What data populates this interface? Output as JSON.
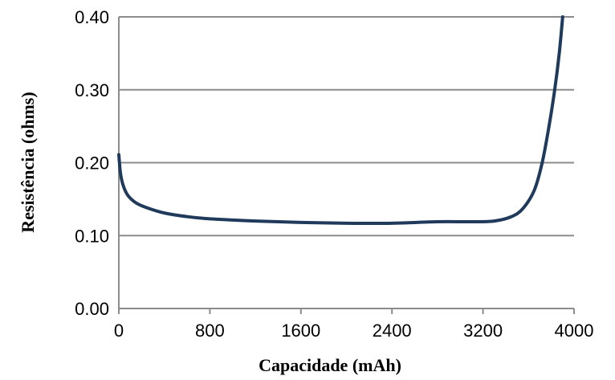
{
  "chart_data": {
    "type": "line",
    "title": "",
    "xlabel": "Capacidade (mAh)",
    "ylabel": "Resistência (ohms)",
    "xlim": [
      0,
      4000
    ],
    "ylim": [
      0,
      0.4
    ],
    "x_ticks": [
      0,
      800,
      1600,
      2400,
      3200,
      4000
    ],
    "x_tick_labels": [
      "0",
      "800",
      "1600",
      "2400",
      "3200",
      "4000"
    ],
    "y_ticks": [
      0,
      0.1,
      0.2,
      0.3,
      0.4
    ],
    "y_tick_labels": [
      "0.00",
      "0.10",
      "0.20",
      "0.30",
      "0.40"
    ],
    "grid": "horizontal",
    "line_color": "#1f3a5a",
    "grid_color": "#8c8c8c",
    "series": [
      {
        "x": [
          0,
          15,
          40,
          80,
          150,
          250,
          400,
          600,
          800,
          1200,
          1600,
          2000,
          2400,
          2800,
          3100,
          3300,
          3450,
          3550,
          3650,
          3720,
          3780,
          3830,
          3870,
          3900
        ],
        "y": [
          0.211,
          0.185,
          0.168,
          0.155,
          0.145,
          0.138,
          0.131,
          0.126,
          0.123,
          0.12,
          0.118,
          0.117,
          0.117,
          0.119,
          0.119,
          0.12,
          0.126,
          0.137,
          0.162,
          0.2,
          0.25,
          0.3,
          0.35,
          0.4
        ]
      }
    ]
  }
}
